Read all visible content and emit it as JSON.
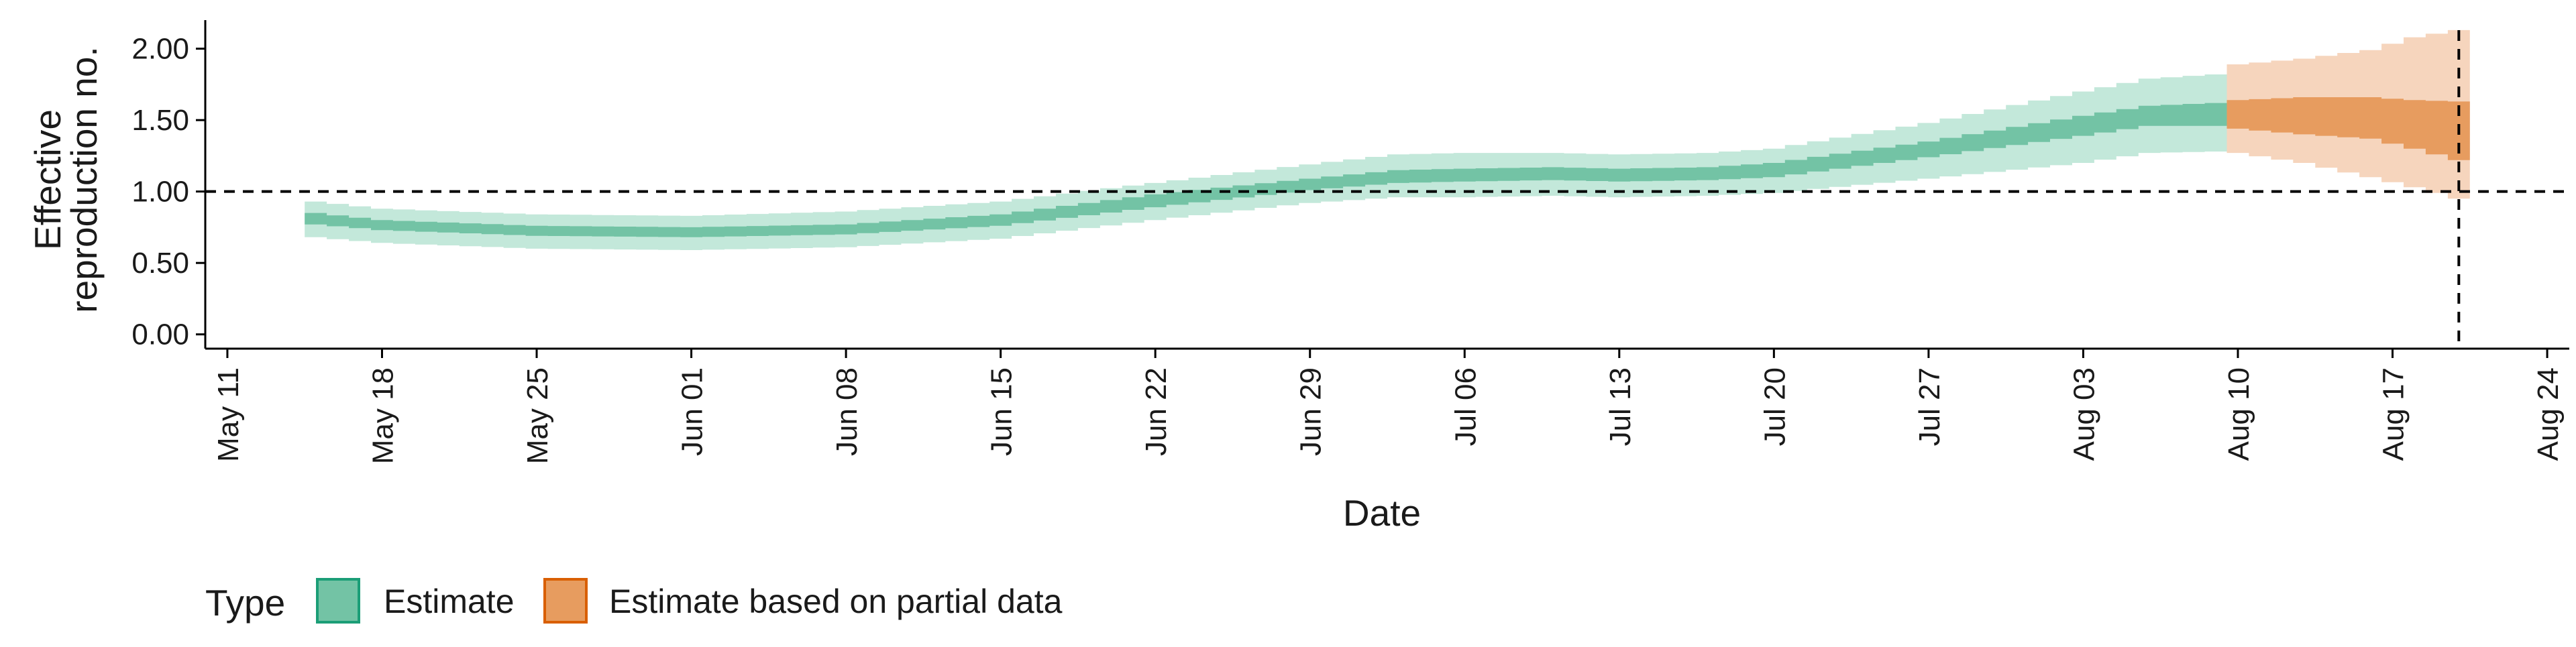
{
  "chart_data": {
    "type": "area",
    "xlabel": "Date",
    "ylabel_lines": [
      "Effective",
      "reproduction no."
    ],
    "x_ticks": [
      "May 11",
      "May 18",
      "May 25",
      "Jun 01",
      "Jun 08",
      "Jun 15",
      "Jun 22",
      "Jun 29",
      "Jul 06",
      "Jul 13",
      "Jul 20",
      "Jul 27",
      "Aug 03",
      "Aug 10",
      "Aug 17",
      "Aug 24"
    ],
    "y_ticks": [
      "0.00",
      "0.50",
      "1.00",
      "1.50",
      "2.00"
    ],
    "ylim": [
      -0.1,
      2.2
    ],
    "xlim": [
      "2020-05-10",
      "2020-08-25"
    ],
    "reference_line_y": 1.0,
    "reference_line_x": "2020-08-20",
    "legend": {
      "title": "Type",
      "placement": "bottom-left",
      "items": [
        "Estimate",
        "Estimate based on partial data"
      ]
    },
    "colors": {
      "estimate_outer": "#c3e8da",
      "estimate_inner": "#73c3a5",
      "partial_outer": "#f6d5bd",
      "partial_inner": "#e79c5f",
      "estimate_legend_border": "#1b9e77",
      "partial_legend_border": "#d95f02"
    },
    "series": [
      {
        "name": "Estimate",
        "keypoints": [
          {
            "date": "2020-05-15",
            "outer": [
              0.68,
              0.93
            ],
            "inner": [
              0.77,
              0.85
            ]
          },
          {
            "date": "2020-05-18",
            "outer": [
              0.64,
              0.88
            ],
            "inner": [
              0.73,
              0.8
            ]
          },
          {
            "date": "2020-05-25",
            "outer": [
              0.6,
              0.84
            ],
            "inner": [
              0.69,
              0.76
            ]
          },
          {
            "date": "2020-06-01",
            "outer": [
              0.59,
              0.83
            ],
            "inner": [
              0.68,
              0.75
            ]
          },
          {
            "date": "2020-06-08",
            "outer": [
              0.61,
              0.86
            ],
            "inner": [
              0.7,
              0.77
            ]
          },
          {
            "date": "2020-06-15",
            "outer": [
              0.67,
              0.93
            ],
            "inner": [
              0.76,
              0.84
            ]
          },
          {
            "date": "2020-06-22",
            "outer": [
              0.8,
              1.06
            ],
            "inner": [
              0.89,
              0.98
            ]
          },
          {
            "date": "2020-06-29",
            "outer": [
              0.92,
              1.19
            ],
            "inner": [
              1.01,
              1.09
            ]
          },
          {
            "date": "2020-07-03",
            "outer": [
              0.96,
              1.26
            ],
            "inner": [
              1.06,
              1.15
            ]
          },
          {
            "date": "2020-07-06",
            "outer": [
              0.96,
              1.27
            ],
            "inner": [
              1.07,
              1.16
            ]
          },
          {
            "date": "2020-07-10",
            "outer": [
              0.97,
              1.27
            ],
            "inner": [
              1.08,
              1.17
            ]
          },
          {
            "date": "2020-07-13",
            "outer": [
              0.96,
              1.26
            ],
            "inner": [
              1.07,
              1.16
            ]
          },
          {
            "date": "2020-07-17",
            "outer": [
              0.97,
              1.27
            ],
            "inner": [
              1.08,
              1.17
            ]
          },
          {
            "date": "2020-07-20",
            "outer": [
              0.99,
              1.3
            ],
            "inner": [
              1.1,
              1.2
            ]
          },
          {
            "date": "2020-07-27",
            "outer": [
              1.09,
              1.48
            ],
            "inner": [
              1.24,
              1.35
            ]
          },
          {
            "date": "2020-08-03",
            "outer": [
              1.2,
              1.7
            ],
            "inner": [
              1.39,
              1.53
            ]
          },
          {
            "date": "2020-08-06",
            "outer": [
              1.27,
              1.79
            ],
            "inner": [
              1.46,
              1.6
            ]
          },
          {
            "date": "2020-08-09",
            "outer": [
              1.28,
              1.82
            ],
            "inner": [
              1.46,
              1.62
            ]
          }
        ]
      },
      {
        "name": "Estimate based on partial data",
        "keypoints": [
          {
            "date": "2020-08-10",
            "outer": [
              1.27,
              1.89
            ],
            "inner": [
              1.44,
              1.64
            ]
          },
          {
            "date": "2020-08-13",
            "outer": [
              1.2,
              1.93
            ],
            "inner": [
              1.4,
              1.66
            ]
          },
          {
            "date": "2020-08-16",
            "outer": [
              1.1,
              1.99
            ],
            "inner": [
              1.37,
              1.66
            ]
          },
          {
            "date": "2020-08-18",
            "outer": [
              1.03,
              2.08
            ],
            "inner": [
              1.3,
              1.64
            ]
          },
          {
            "date": "2020-08-20",
            "outer": [
              0.95,
              2.13
            ],
            "inner": [
              1.22,
              1.63
            ]
          }
        ]
      }
    ]
  }
}
